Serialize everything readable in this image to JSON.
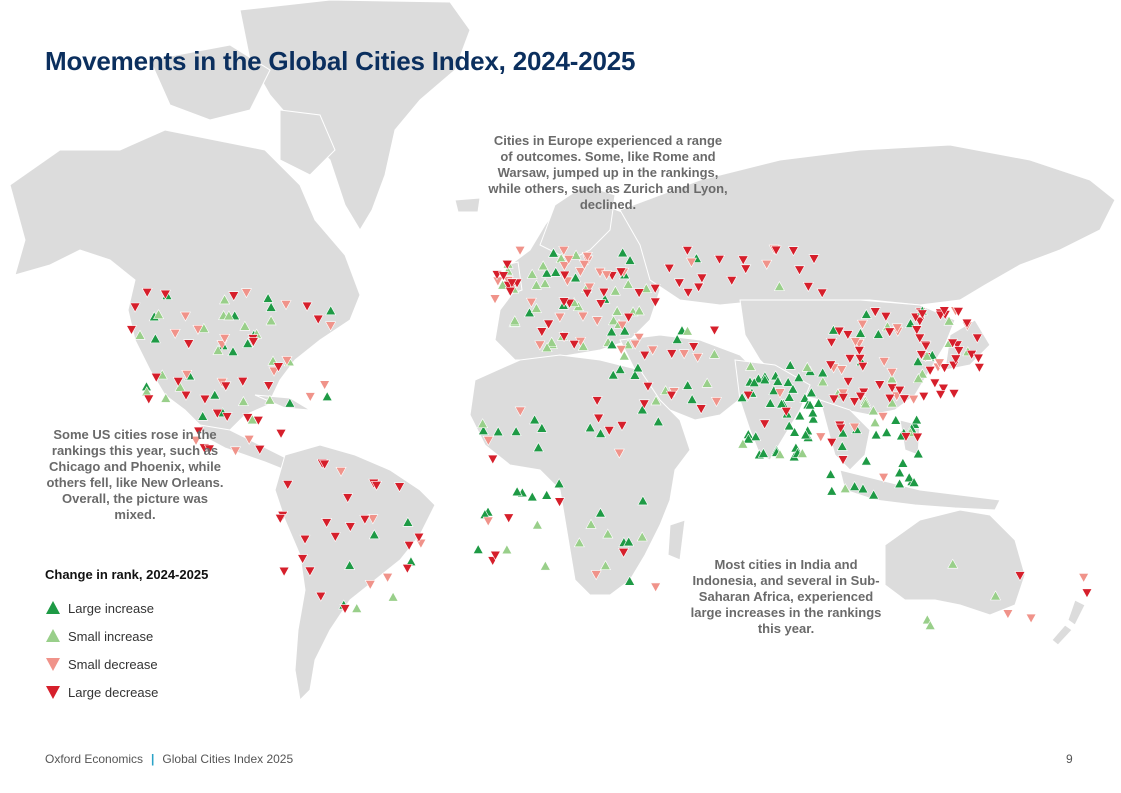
{
  "title": "Movements in the Global Cities Index, 2024-2025",
  "annotations": {
    "europe": "Cities in Europe experienced a range of outcomes. Some, like Rome and Warsaw, jumped up in the rankings, while others, such as Zurich and Lyon, declined.",
    "us": "Some US cities rose in the rankings this year, such as Chicago and Phoenix, while others fell, like New Orleans. Overall, the picture was mixed.",
    "india": "Most cities in India and Indonesia, and several in Sub-Saharan Africa, experienced large increases in the rankings this year."
  },
  "legend": {
    "title": "Change in rank, 2024-2025",
    "items": [
      {
        "label": "Large increase",
        "color": "#1e9a45",
        "dir": "up"
      },
      {
        "label": "Small increase",
        "color": "#99cf8a",
        "dir": "up"
      },
      {
        "label": "Small decrease",
        "color": "#f0938a",
        "dir": "down"
      },
      {
        "label": "Large decrease",
        "color": "#d61f2b",
        "dir": "down"
      }
    ]
  },
  "footer": {
    "publisher": "Oxford Economics",
    "separator": "|",
    "report": "Global Cities Index 2025",
    "page": "9"
  },
  "marker_regions": [
    {
      "region": "North America",
      "counts": {
        "large_increase": 14,
        "small_increase": 16,
        "small_decrease": 14,
        "large_decrease": 18
      }
    },
    {
      "region": "Central America & Caribbean",
      "counts": {
        "large_increase": 4,
        "small_increase": 3,
        "small_decrease": 3,
        "large_decrease": 10
      }
    },
    {
      "region": "South America",
      "counts": {
        "large_increase": 5,
        "small_increase": 2,
        "small_decrease": 5,
        "large_decrease": 22
      }
    },
    {
      "region": "Europe",
      "counts": {
        "large_increase": 10,
        "small_increase": 30,
        "small_decrease": 22,
        "large_decrease": 18
      }
    },
    {
      "region": "Russia & Central Asia",
      "counts": {
        "large_increase": 2,
        "small_increase": 2,
        "small_decrease": 6,
        "large_decrease": 22
      }
    },
    {
      "region": "Middle East",
      "counts": {
        "large_increase": 12,
        "small_increase": 5,
        "small_decrease": 6,
        "large_decrease": 8
      }
    },
    {
      "region": "Africa",
      "counts": {
        "large_increase": 22,
        "small_increase": 10,
        "small_decrease": 6,
        "large_decrease": 10
      }
    },
    {
      "region": "India",
      "counts": {
        "large_increase": 44,
        "small_increase": 6,
        "small_decrease": 2,
        "large_decrease": 3
      }
    },
    {
      "region": "China",
      "counts": {
        "large_increase": 8,
        "small_increase": 10,
        "small_decrease": 14,
        "large_decrease": 40
      }
    },
    {
      "region": "Japan & Korea",
      "counts": {
        "large_increase": 2,
        "small_increase": 2,
        "small_decrease": 2,
        "large_decrease": 14
      }
    },
    {
      "region": "Southeast Asia & Indonesia",
      "counts": {
        "large_increase": 24,
        "small_increase": 4,
        "small_decrease": 3,
        "large_decrease": 6
      }
    },
    {
      "region": "Oceania",
      "counts": {
        "large_increase": 0,
        "small_increase": 4,
        "small_decrease": 3,
        "large_decrease": 2
      }
    }
  ]
}
